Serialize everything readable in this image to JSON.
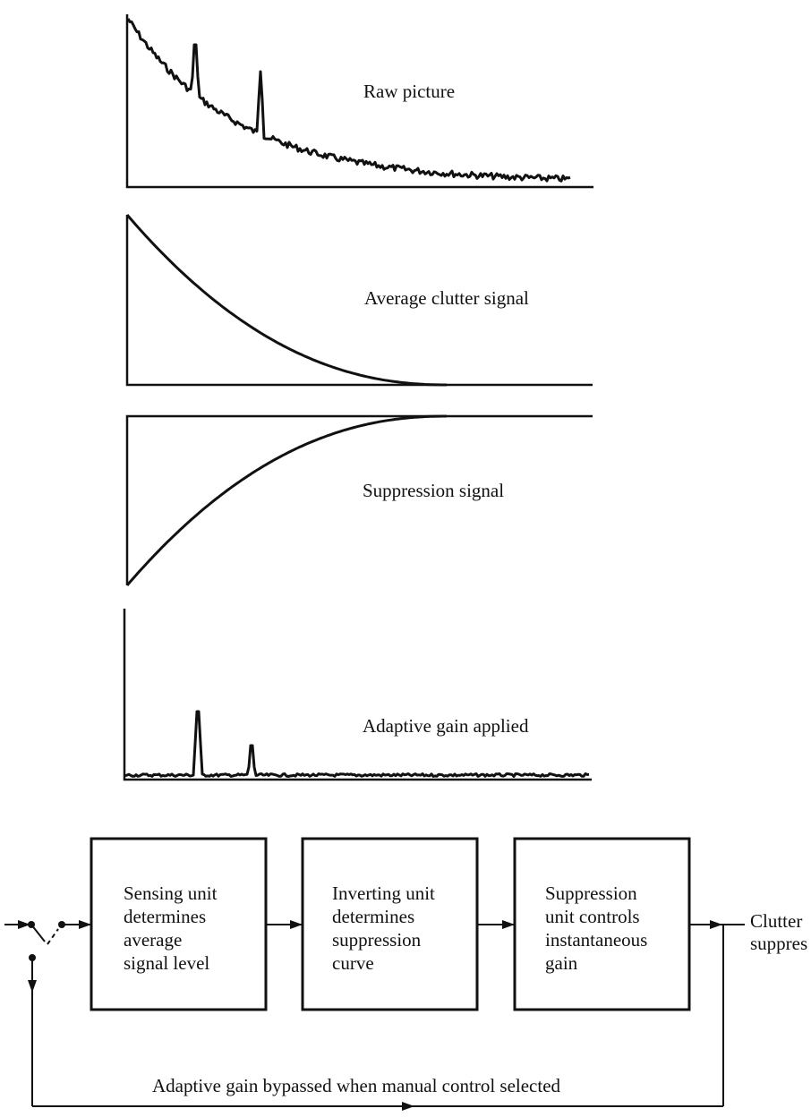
{
  "panels": {
    "raw": {
      "label": "Raw picture"
    },
    "clutter": {
      "label": "Average clutter signal"
    },
    "suppression": {
      "label": "Suppression signal"
    },
    "gain": {
      "label": "Adaptive gain applied"
    }
  },
  "blocks": [
    {
      "lines": [
        "Sensing unit",
        "determines",
        "average",
        "signal level"
      ]
    },
    {
      "lines": [
        "Inverting unit",
        "determines",
        "suppression",
        "curve"
      ]
    },
    {
      "lines": [
        "Suppression",
        "unit controls",
        "instantaneous",
        "gain"
      ]
    }
  ],
  "output": {
    "lines": [
      "Clutter",
      "suppres"
    ]
  },
  "bypass_label": "Adaptive gain bypassed when manual control selected"
}
